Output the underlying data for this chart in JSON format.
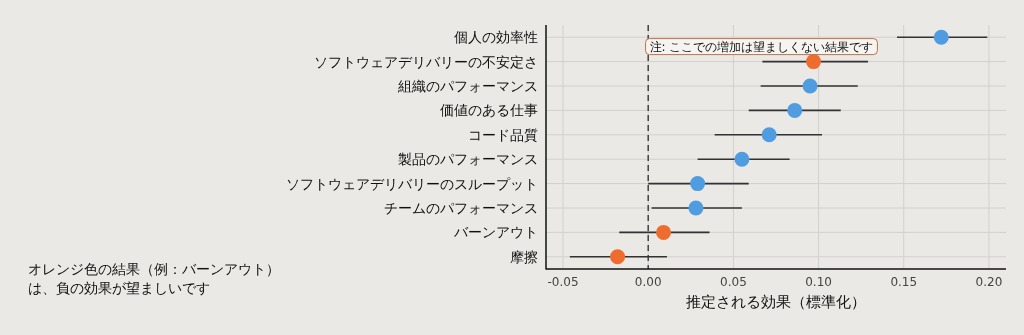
{
  "chart_data": {
    "type": "scatter",
    "orientation": "horizontal",
    "xlabel": "推定される効果（標準化）",
    "categories": [
      "個人の効率性",
      "ソフトウェアデリバリーの不安定さ",
      "組織のパフォーマンス",
      "価値のある仕事",
      "コード品質",
      "製品のパフォーマンス",
      "ソフトウェアデリバリーのスループット",
      "チームのパフォーマンス",
      "バーンアウト",
      "摩擦"
    ],
    "values": [
      0.172,
      0.097,
      0.095,
      0.086,
      0.071,
      0.055,
      0.029,
      0.028,
      0.009,
      -0.018
    ],
    "errors": [
      [
        0.146,
        0.199
      ],
      [
        0.067,
        0.129
      ],
      [
        0.066,
        0.123
      ],
      [
        0.059,
        0.113
      ],
      [
        0.039,
        0.102
      ],
      [
        0.029,
        0.083
      ],
      [
        0.0,
        0.059
      ],
      [
        0.002,
        0.055
      ],
      [
        -0.017,
        0.036
      ],
      [
        -0.046,
        0.011
      ]
    ],
    "colors": [
      "#4f9de0",
      "#ef6c2f",
      "#4f9de0",
      "#4f9de0",
      "#4f9de0",
      "#4f9de0",
      "#4f9de0",
      "#4f9de0",
      "#ef6c2f",
      "#ef6c2f"
    ],
    "xlim": [
      -0.06,
      0.21
    ],
    "xticks": [
      {
        "value": -0.05,
        "label": "-0.05"
      },
      {
        "value": 0,
        "label": "0.00"
      },
      {
        "value": 0.05,
        "label": "0.05"
      },
      {
        "value": 0.1,
        "label": "0.10"
      },
      {
        "value": 0.15,
        "label": "0.15"
      },
      {
        "value": 0.2,
        "label": "0.20"
      }
    ],
    "ref_lines": [
      {
        "axis": "x",
        "value": 0,
        "label": null,
        "line_style": "dashed",
        "color": "#444444"
      }
    ],
    "annotations": [
      {
        "text": "注: ここでの増加は望ましくない結果です",
        "x": 0.097,
        "y": "ソフトウェアデリバリーの不安定さ"
      },
      "オレンジ色の結果（例：バーンアウト）",
      "は、負の効果が望ましいです"
    ],
    "grid": true,
    "marker": "circle"
  }
}
